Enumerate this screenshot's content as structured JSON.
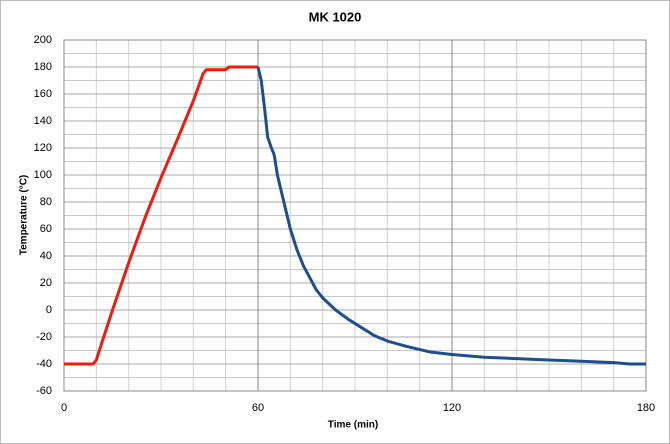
{
  "chart_data": {
    "type": "line",
    "title": "MK 1020",
    "x_label": "Time (min)",
    "y_label": "Temperature (°C)",
    "xlim": [
      0,
      180
    ],
    "xticks": [
      0,
      60,
      120,
      180
    ],
    "ylim": [
      -60,
      200
    ],
    "yticks": [
      -60,
      -40,
      -20,
      0,
      20,
      40,
      60,
      80,
      100,
      120,
      140,
      160,
      180,
      200
    ],
    "grid": true,
    "x_minor_step": 10,
    "y_minor_step": 10,
    "series": [
      {
        "color": "#ee1c0e",
        "x": [
          0,
          9,
          10,
          12,
          15,
          20,
          25,
          30,
          35,
          40,
          43,
          44,
          50,
          51,
          60
        ],
        "values": [
          -40,
          -40,
          -37,
          -22,
          0,
          35,
          68,
          98,
          126,
          155,
          175,
          178,
          178,
          180,
          180
        ]
      },
      {
        "color": "#1f4e8c",
        "x": [
          60,
          61,
          62,
          63,
          64,
          65,
          66,
          68,
          70,
          72,
          74,
          76,
          78,
          80,
          84,
          88,
          92,
          96,
          100,
          106,
          113,
          120,
          130,
          140,
          150,
          160,
          170,
          175,
          180
        ],
        "values": [
          180,
          170,
          150,
          128,
          121,
          115,
          100,
          80,
          60,
          45,
          33,
          24,
          15,
          9,
          0,
          -7,
          -13,
          -19,
          -23,
          -27,
          -31,
          -33,
          -35,
          -36,
          -37,
          -38,
          -39,
          -40,
          -40
        ]
      }
    ]
  }
}
